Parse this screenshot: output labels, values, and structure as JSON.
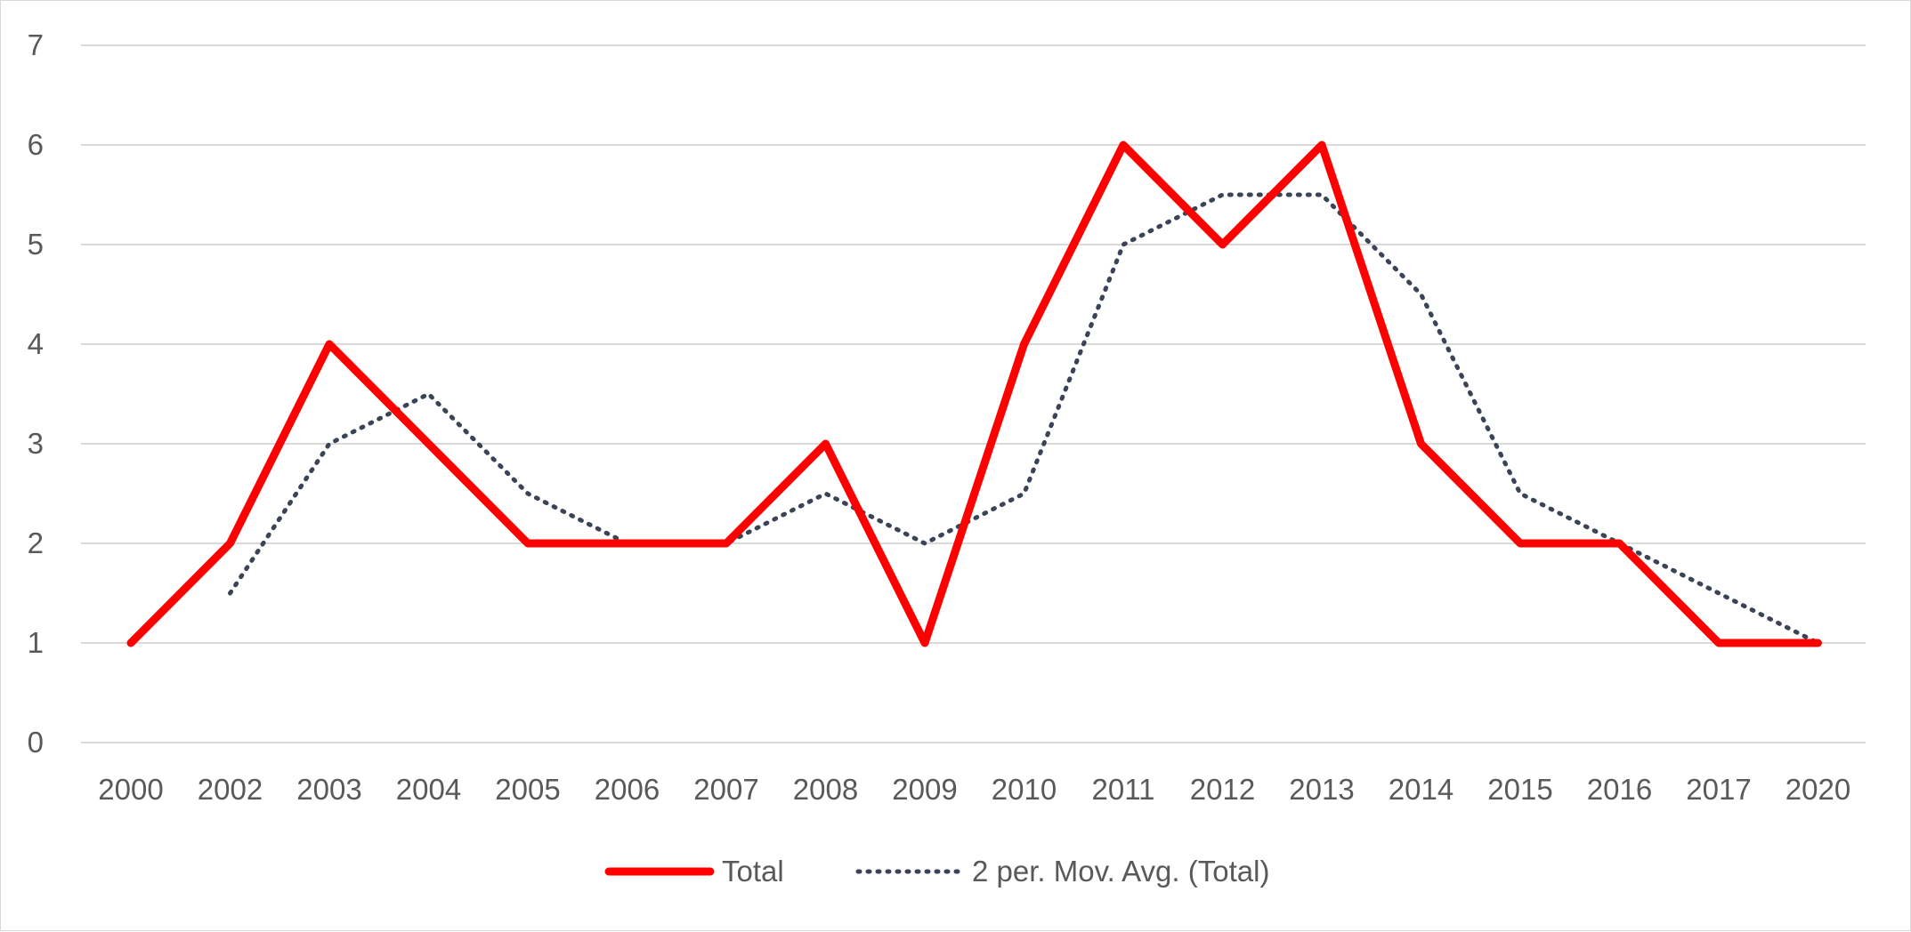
{
  "chart_data": {
    "type": "line",
    "title": "",
    "xlabel": "",
    "ylabel": "",
    "categories": [
      "2000",
      "2002",
      "2003",
      "2004",
      "2005",
      "2006",
      "2007",
      "2008",
      "2009",
      "2010",
      "2011",
      "2012",
      "2013",
      "2014",
      "2015",
      "2016",
      "2017",
      "2020"
    ],
    "ylim": [
      0,
      7
    ],
    "yticks": [
      0,
      1,
      2,
      3,
      4,
      5,
      6,
      7
    ],
    "grid": true,
    "legend_position": "bottom",
    "series": [
      {
        "name": "Total",
        "style": "solid",
        "color": "#ff0000",
        "values": [
          1,
          2,
          4,
          3,
          2,
          2,
          2,
          3,
          1,
          4,
          6,
          5,
          6,
          3,
          2,
          2,
          1,
          1
        ]
      },
      {
        "name": "2 per. Mov. Avg. (Total)",
        "style": "dotted",
        "color": "#3b4456",
        "values": [
          null,
          1.5,
          3,
          3.5,
          2.5,
          2,
          2,
          2.5,
          2,
          2.5,
          5,
          5.5,
          5.5,
          4.5,
          2.5,
          2,
          1.5,
          1
        ]
      }
    ]
  }
}
